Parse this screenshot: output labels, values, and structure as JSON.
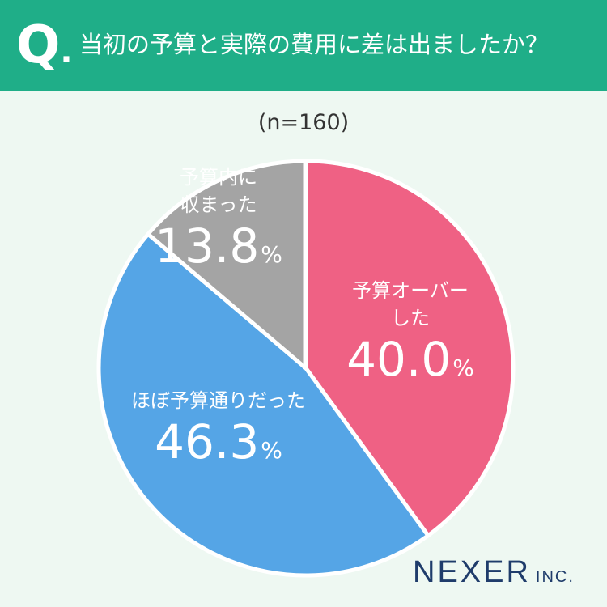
{
  "header": {
    "q_mark": "Q",
    "q_dot": ".",
    "question": "当初の予算と実際の費用に差は出ましたか？",
    "bg_color": "#1fae88"
  },
  "chart_data": {
    "type": "pie",
    "title": "当初の予算と実際の費用に差は出ましたか？",
    "sample_size": "(n=160)",
    "slices": [
      {
        "label_lines": [
          "予算オーバー",
          "した"
        ],
        "value": 40.0,
        "display": "40.0",
        "color": "#ef6184"
      },
      {
        "label_lines": [
          "ほぼ予算通りだった"
        ],
        "value": 46.3,
        "display": "46.3",
        "color": "#55a5e6"
      },
      {
        "label_lines": [
          "予算内に",
          "収まった"
        ],
        "value": 13.8,
        "display": "13.8",
        "color": "#a4a4a4"
      }
    ],
    "unit": "%",
    "start": "12 o'clock",
    "direction": "clockwise"
  },
  "brand": {
    "main": "NEXER",
    "sub": "INC.",
    "color": "#1f3c6b"
  }
}
